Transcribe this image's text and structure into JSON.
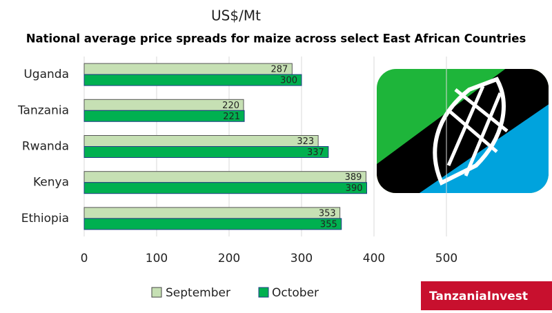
{
  "chart_data": {
    "type": "bar",
    "orientation": "horizontal",
    "unit_label": "US$/Mt",
    "title": "National average price spreads for maize across select East African Countries",
    "categories": [
      "Uganda",
      "Tanzania",
      "Rwanda",
      "Kenya",
      "Ethiopia"
    ],
    "series": [
      {
        "name": "September",
        "color": "#c6e0b4",
        "values": [
          287,
          220,
          323,
          389,
          353
        ]
      },
      {
        "name": "October",
        "color": "#00b050",
        "values": [
          300,
          221,
          337,
          390,
          355
        ]
      }
    ],
    "xlim": [
      0,
      500
    ],
    "xticks": [
      0,
      100,
      200,
      300,
      400,
      500
    ],
    "grid": true
  },
  "logo": "TanzaniaInvest"
}
